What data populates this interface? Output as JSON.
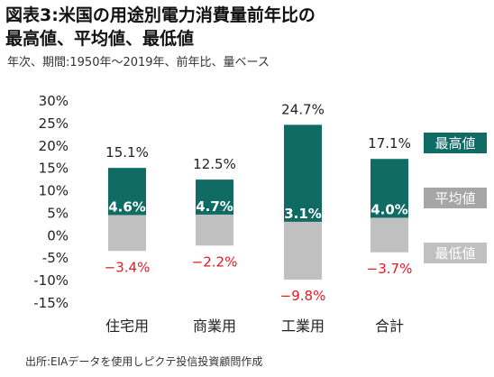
{
  "title_line1": "図表3:米国の用途別電力消費量前年比の",
  "title_line2": "最高値、平均値、最低値",
  "subtitle": "年次、期間:1950年〜2019年、前年比、量ベース",
  "source": "出所:EIAデータを使用しピクテ投信投資顧問作成",
  "colors": {
    "max": "#0f6b63",
    "min": "#c0c0c0",
    "avg_label_bg": "#a6a6a6",
    "min_label_text": "#e11b22",
    "text": "#222222"
  },
  "chart_data": {
    "type": "bar",
    "categories": [
      "住宅用",
      "商業用",
      "工業用",
      "合計"
    ],
    "max": [
      15.1,
      12.5,
      24.7,
      17.1
    ],
    "avg": [
      4.6,
      4.7,
      3.1,
      4.0
    ],
    "min": [
      -3.4,
      -2.2,
      -9.8,
      -3.7
    ],
    "max_labels": [
      "15.1%",
      "12.5%",
      "24.7%",
      "17.1%"
    ],
    "avg_labels": [
      "4.6%",
      "4.7%",
      "3.1%",
      "4.0%"
    ],
    "min_labels": [
      "−3.4%",
      "−2.2%",
      "−9.8%",
      "−3.7%"
    ],
    "yticks": [
      30,
      25,
      20,
      15,
      10,
      5,
      0,
      -5,
      -10,
      -15
    ],
    "ytick_labels": [
      "30%",
      "25%",
      "20%",
      "15%",
      "10%",
      "5%",
      "0%",
      "-5%",
      "-10%",
      "-15%"
    ],
    "ylim": [
      -15,
      30
    ],
    "legend": [
      "最高値",
      "平均値",
      "最低値"
    ],
    "legend_position": "right"
  }
}
